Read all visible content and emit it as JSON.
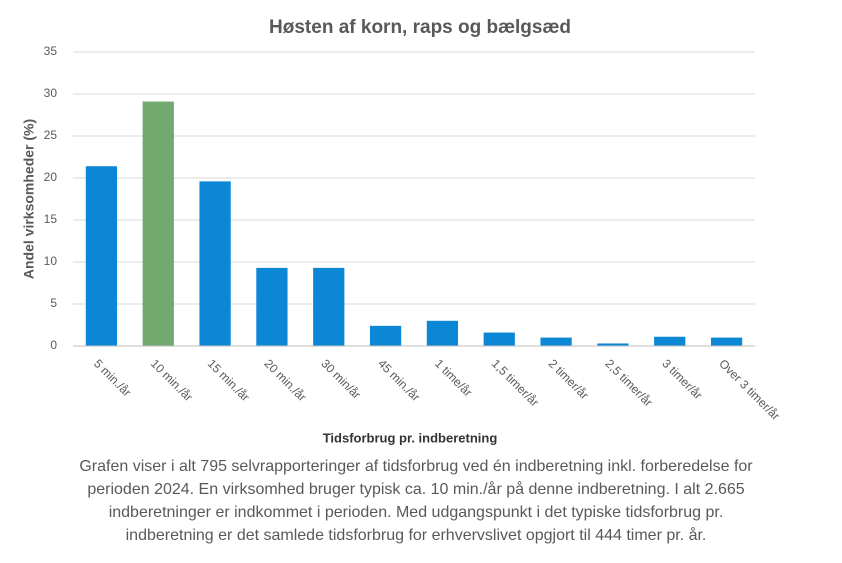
{
  "chart_data": {
    "type": "bar",
    "title": "Høsten af korn, raps og bælgsæd",
    "x_label": "Tidsforbrug pr. indberetning",
    "y_label": "Andel virksomheder  (%)",
    "categories": [
      "5 min./år",
      "10 min./år",
      "15 min./år",
      "20 min./år",
      "30 min/år",
      "45 min./år",
      "1 time/år",
      "1,5 timer/år",
      "2 timer/år",
      "2,5 timer/år",
      "3 timer/år",
      "Over 3 timer/år"
    ],
    "values": [
      21.4,
      29.1,
      19.6,
      9.3,
      9.3,
      2.4,
      3.0,
      1.6,
      1.0,
      0.3,
      1.1,
      1.0
    ],
    "colors": [
      "#0b87d6",
      "#72a96e",
      "#0b87d6",
      "#0b87d6",
      "#0b87d6",
      "#0b87d6",
      "#0b87d6",
      "#0b87d6",
      "#0b87d6",
      "#0b87d6",
      "#0b87d6",
      "#0b87d6"
    ],
    "ylim": [
      0,
      35
    ],
    "yticks": [
      0,
      5,
      10,
      15,
      20,
      25,
      30,
      35
    ],
    "grid": true,
    "caption": [
      "Grafen viser i alt 795 selvrapporteringer  af tidsforbrug ved én indberetning inkl. forberedelse for",
      "perioden 2024. En virksomhed bruger typisk ca. 10 min./år på denne indberetning.  I alt 2.665",
      "indberetninger  er indkommet i perioden. Med udgangspunkt i det typiske tidsforbrug pr.",
      "indberetning  er det samlede tidsforbrug for erhvervslivet opgjort til 444 timer pr. år."
    ]
  }
}
